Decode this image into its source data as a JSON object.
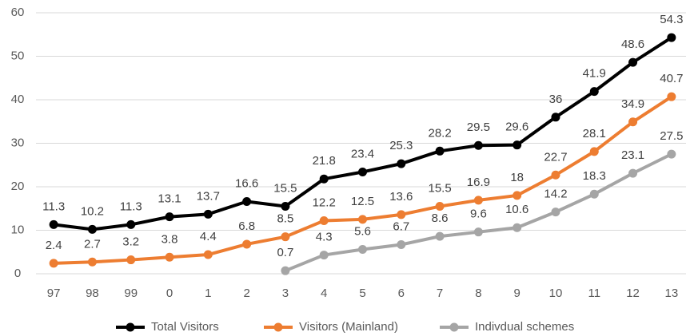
{
  "chart_data": {
    "type": "line",
    "categories": [
      "97",
      "98",
      "99",
      "0",
      "1",
      "2",
      "3",
      "4",
      "5",
      "6",
      "7",
      "8",
      "9",
      "10",
      "11",
      "12",
      "13"
    ],
    "series": [
      {
        "name": "Total Visitors",
        "color": "#000000",
        "values": [
          11.3,
          10.2,
          11.3,
          13.1,
          13.7,
          16.6,
          15.5,
          21.8,
          23.4,
          25.3,
          28.2,
          29.5,
          29.6,
          36,
          41.9,
          48.6,
          54.3
        ]
      },
      {
        "name": "Visitors (Mainland)",
        "color": "#ed7d31",
        "values": [
          2.4,
          2.7,
          3.2,
          3.8,
          4.4,
          6.8,
          8.5,
          12.2,
          12.5,
          13.6,
          15.5,
          16.9,
          18,
          22.7,
          28.1,
          34.9,
          40.7
        ]
      },
      {
        "name": "Indivdual schemes",
        "color": "#a5a5a5",
        "values": [
          null,
          null,
          null,
          null,
          null,
          null,
          0.7,
          4.3,
          5.6,
          6.7,
          8.6,
          9.6,
          10.6,
          14.2,
          18.3,
          23.1,
          27.5
        ]
      }
    ],
    "ylim": [
      0,
      60
    ],
    "yticks": [
      0,
      10,
      20,
      30,
      40,
      50,
      60
    ],
    "grid": true,
    "legend": "bottom"
  }
}
